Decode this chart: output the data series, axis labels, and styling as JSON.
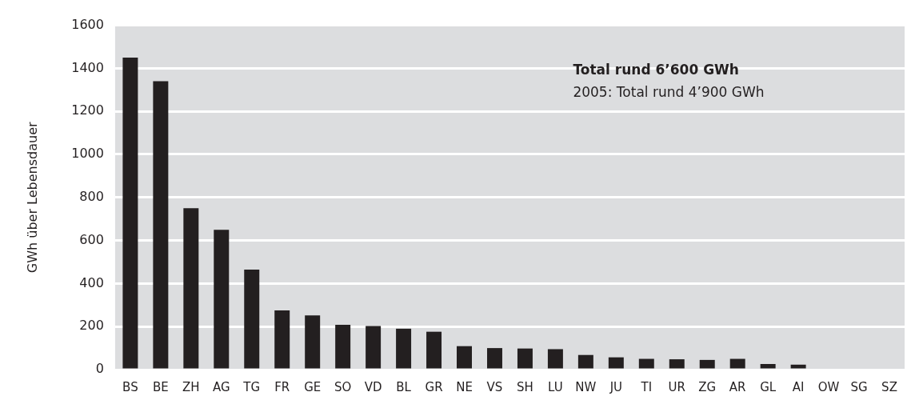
{
  "chart_data": {
    "type": "bar",
    "ylabel": "GWh über Lebensdauer",
    "annotations": [
      "Total rund 6’600 GWh",
      "2005: Total rund 4’900 GWh"
    ],
    "categories": [
      "BS",
      "BE",
      "ZH",
      "AG",
      "TG",
      "FR",
      "GE",
      "SO",
      "VD",
      "BL",
      "GR",
      "NE",
      "VS",
      "SH",
      "LU",
      "NW",
      "JU",
      "TI",
      "UR",
      "ZG",
      "AR",
      "GL",
      "AI",
      "OW",
      "SG",
      "SZ"
    ],
    "values": [
      1450,
      1340,
      750,
      650,
      465,
      275,
      252,
      208,
      203,
      190,
      176,
      109,
      100,
      98,
      95,
      68,
      57,
      50,
      48,
      45,
      50,
      26,
      23,
      0,
      0,
      0
    ],
    "color": "#231f20",
    "ylim": [
      0,
      1600
    ],
    "yticks": [
      0,
      200,
      400,
      600,
      800,
      1000,
      1200,
      1400,
      1600
    ],
    "grid": "y",
    "legend": false
  }
}
